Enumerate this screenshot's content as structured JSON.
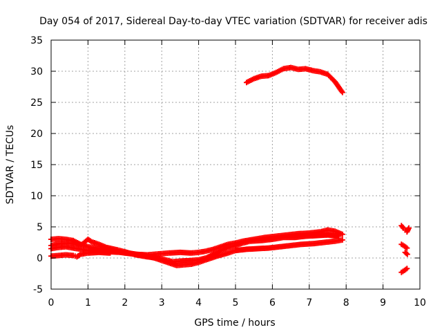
{
  "chart_data": {
    "type": "scatter",
    "title": "Day 054 of 2017, Sidereal Day-to-day VTEC variation (SDTVAR) for receiver adis",
    "xlabel": "GPS time / hours",
    "ylabel": "SDTVAR / TECUs",
    "xlim": [
      0,
      10
    ],
    "ylim": [
      -5,
      35
    ],
    "xticks": [
      0,
      1,
      2,
      3,
      4,
      5,
      6,
      7,
      8,
      9,
      10
    ],
    "yticks": [
      -5,
      0,
      5,
      10,
      15,
      20,
      25,
      30,
      35
    ],
    "xtick_labels": [
      "0",
      "1",
      "2",
      "3",
      "4",
      "5",
      "6",
      "7",
      "8",
      "9",
      "10"
    ],
    "ytick_labels": [
      "-5",
      "0",
      "5",
      "10",
      "15",
      "20",
      "25",
      "30",
      "35"
    ],
    "grid": true,
    "marker": "plus",
    "color": "#ff0000",
    "series": [
      {
        "name": "trace-1",
        "points": [
          [
            0.0,
            3.0
          ],
          [
            0.2,
            3.1
          ],
          [
            0.4,
            3.0
          ],
          [
            0.6,
            2.8
          ],
          [
            0.8,
            2.2
          ],
          [
            1.0,
            1.8
          ],
          [
            1.2,
            1.6
          ],
          [
            1.5,
            1.3
          ],
          [
            1.8,
            1.0
          ],
          [
            2.0,
            0.8
          ],
          [
            2.3,
            0.6
          ],
          [
            2.6,
            0.5
          ],
          [
            3.0,
            0.7
          ],
          [
            3.2,
            0.8
          ],
          [
            3.5,
            0.9
          ],
          [
            3.8,
            0.8
          ],
          [
            4.0,
            0.9
          ],
          [
            4.2,
            1.1
          ],
          [
            4.4,
            1.4
          ],
          [
            4.6,
            1.8
          ],
          [
            4.8,
            2.2
          ],
          [
            5.0,
            2.4
          ],
          [
            5.2,
            2.7
          ],
          [
            5.5,
            3.0
          ],
          [
            5.8,
            3.3
          ],
          [
            6.1,
            3.5
          ],
          [
            6.4,
            3.7
          ],
          [
            6.7,
            3.9
          ],
          [
            7.0,
            4.0
          ],
          [
            7.3,
            4.2
          ],
          [
            7.5,
            4.5
          ],
          [
            7.7,
            4.3
          ],
          [
            7.9,
            3.8
          ]
        ]
      },
      {
        "name": "trace-2",
        "points": [
          [
            0.0,
            2.0
          ],
          [
            0.2,
            2.3
          ],
          [
            0.4,
            2.4
          ],
          [
            0.6,
            2.3
          ],
          [
            0.8,
            2.0
          ],
          [
            1.0,
            3.0
          ],
          [
            1.1,
            2.6
          ],
          [
            1.3,
            2.2
          ],
          [
            1.5,
            1.7
          ],
          [
            1.8,
            1.3
          ],
          [
            2.0,
            1.0
          ],
          [
            2.3,
            0.5
          ],
          [
            2.6,
            0.2
          ],
          [
            2.9,
            0.0
          ],
          [
            3.1,
            -0.3
          ],
          [
            3.3,
            -0.6
          ],
          [
            3.5,
            -0.5
          ],
          [
            3.8,
            -0.4
          ],
          [
            4.0,
            -0.3
          ],
          [
            4.2,
            0.0
          ],
          [
            4.4,
            0.6
          ],
          [
            4.6,
            1.2
          ],
          [
            4.8,
            1.7
          ],
          [
            5.0,
            2.0
          ],
          [
            5.2,
            2.4
          ],
          [
            5.4,
            2.7
          ],
          [
            5.7,
            2.8
          ],
          [
            6.0,
            3.0
          ],
          [
            6.3,
            3.3
          ],
          [
            6.6,
            3.3
          ],
          [
            6.9,
            3.5
          ],
          [
            7.2,
            3.6
          ],
          [
            7.5,
            3.7
          ],
          [
            7.8,
            3.5
          ]
        ]
      },
      {
        "name": "trace-3",
        "points": [
          [
            0.0,
            1.5
          ],
          [
            0.2,
            1.7
          ],
          [
            0.4,
            1.8
          ],
          [
            0.6,
            1.6
          ],
          [
            0.8,
            1.4
          ],
          [
            1.0,
            1.2
          ],
          [
            1.3,
            1.1
          ],
          [
            1.6,
            1.0
          ],
          [
            1.9,
            0.9
          ],
          [
            2.2,
            0.7
          ],
          [
            2.5,
            0.4
          ],
          [
            2.8,
            0.0
          ],
          [
            3.0,
            -0.4
          ],
          [
            3.2,
            -0.8
          ],
          [
            3.4,
            -1.2
          ],
          [
            3.6,
            -1.1
          ],
          [
            3.8,
            -1.0
          ],
          [
            4.0,
            -0.7
          ],
          [
            4.2,
            -0.3
          ],
          [
            4.5,
            0.3
          ],
          [
            4.8,
            0.8
          ],
          [
            5.0,
            1.2
          ],
          [
            5.3,
            1.4
          ],
          [
            5.6,
            1.5
          ],
          [
            5.9,
            1.6
          ],
          [
            6.2,
            1.8
          ],
          [
            6.5,
            2.0
          ],
          [
            6.8,
            2.2
          ],
          [
            7.1,
            2.3
          ],
          [
            7.4,
            2.5
          ],
          [
            7.7,
            2.7
          ],
          [
            7.9,
            2.9
          ]
        ]
      },
      {
        "name": "trace-4",
        "points": [
          [
            0.0,
            0.3
          ],
          [
            0.2,
            0.4
          ],
          [
            0.4,
            0.5
          ],
          [
            0.6,
            0.4
          ],
          [
            0.7,
            0.2
          ],
          [
            0.8,
            0.6
          ],
          [
            1.0,
            0.8
          ],
          [
            1.3,
            0.9
          ],
          [
            1.6,
            0.8
          ]
        ]
      },
      {
        "name": "trace-5",
        "points": [
          [
            5.3,
            28.2
          ],
          [
            5.5,
            28.8
          ],
          [
            5.7,
            29.2
          ],
          [
            5.9,
            29.3
          ],
          [
            6.1,
            29.8
          ],
          [
            6.3,
            30.4
          ],
          [
            6.5,
            30.6
          ],
          [
            6.7,
            30.3
          ],
          [
            6.9,
            30.4
          ],
          [
            7.1,
            30.1
          ],
          [
            7.3,
            29.9
          ],
          [
            7.5,
            29.5
          ],
          [
            7.7,
            28.3
          ],
          [
            7.9,
            26.6
          ]
        ]
      },
      {
        "name": "trace-6",
        "points": [
          [
            9.5,
            5.2
          ],
          [
            9.55,
            4.8
          ],
          [
            9.6,
            4.5
          ],
          [
            9.65,
            4.2
          ],
          [
            9.7,
            4.8
          ]
        ]
      },
      {
        "name": "trace-7",
        "points": [
          [
            9.5,
            2.2
          ],
          [
            9.58,
            1.9
          ],
          [
            9.65,
            1.6
          ]
        ]
      },
      {
        "name": "trace-8",
        "points": [
          [
            9.6,
            0.9
          ],
          [
            9.66,
            0.6
          ]
        ]
      },
      {
        "name": "trace-9",
        "points": [
          [
            9.5,
            -2.3
          ],
          [
            9.58,
            -2.0
          ],
          [
            9.65,
            -1.7
          ]
        ]
      }
    ]
  }
}
